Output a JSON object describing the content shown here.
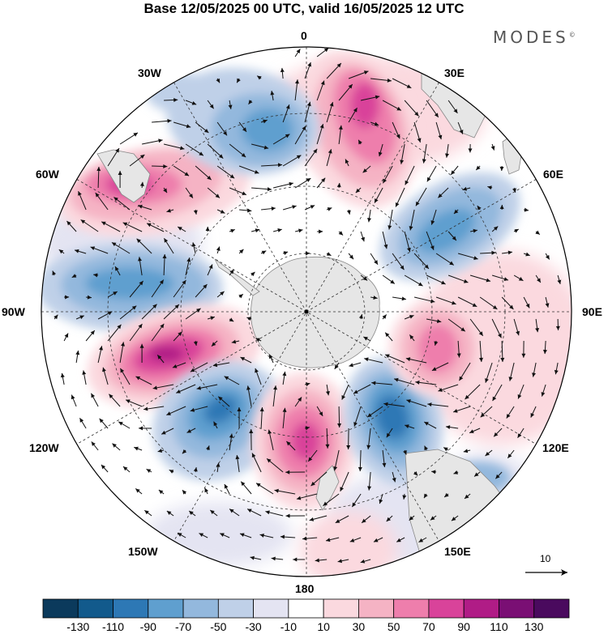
{
  "title": "Base 12/05/2025 00 UTC, valid 16/05/2025 12 UTC",
  "brand": {
    "name": "MODES",
    "mark": "©"
  },
  "longitude_labels": {
    "n0": "0",
    "n30e": "30E",
    "n60e": "60E",
    "n90e": "90E",
    "n120e": "120E",
    "n150e": "150E",
    "n180": "180",
    "n150w": "150W",
    "n120w": "120W",
    "n90w": "90W",
    "n60w": "60W",
    "n30w": "30W"
  },
  "reference_vector": {
    "label": "10"
  },
  "colorbar": {
    "labels": [
      "-130",
      "-110",
      "-90",
      "-70",
      "-50",
      "-30",
      "-10",
      "10",
      "30",
      "50",
      "70",
      "90",
      "110",
      "130"
    ],
    "colors": [
      "#0b3a5c",
      "#125a8c",
      "#2d78b5",
      "#5f9fcf",
      "#93b8dd",
      "#bfd0e8",
      "#e4e4f2",
      "#ffffff",
      "#fbd9df",
      "#f5b3c4",
      "#ee7eac",
      "#d9439a",
      "#b01c86",
      "#7a0f74",
      "#4a0a5e"
    ]
  },
  "colors": {
    "land": "#e6e6e6",
    "coast": "#888888",
    "arrow": "#111111",
    "grid": "#333333"
  },
  "icons": {
    "arrow": "wind-vector-icon",
    "antarctica": "continent-shape"
  }
}
